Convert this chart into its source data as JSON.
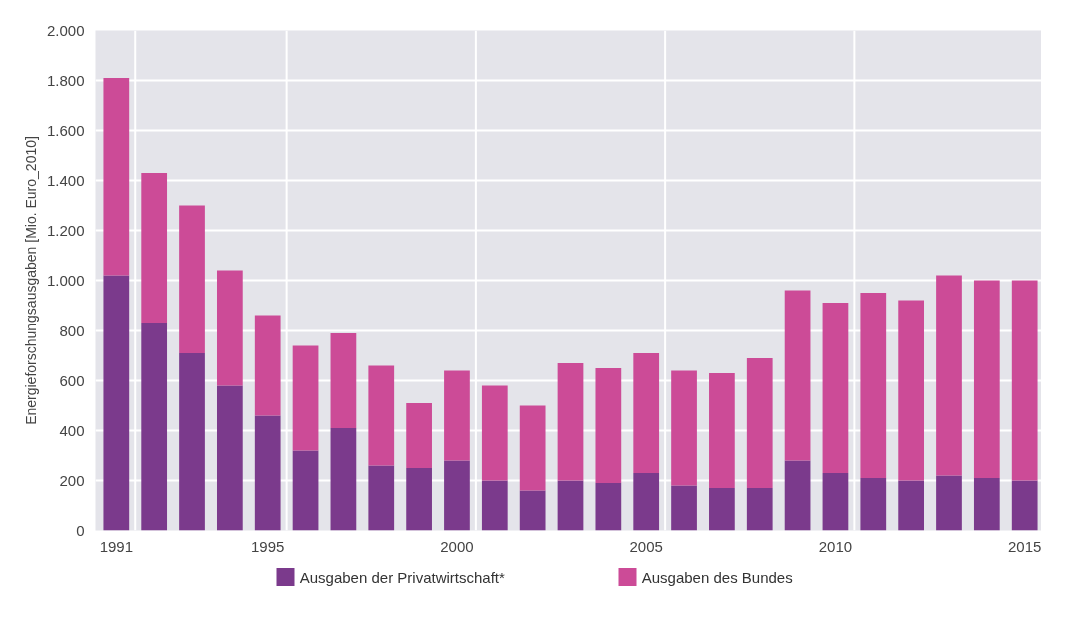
{
  "chart_data": {
    "type": "bar",
    "stacked": true,
    "ylabel": "Energieforschungsausgaben [Mio. Euro_2010]",
    "categories": [
      "1991",
      null,
      null,
      null,
      "1995",
      null,
      null,
      null,
      null,
      "2000",
      null,
      null,
      null,
      null,
      "2005",
      null,
      null,
      null,
      null,
      "2010",
      null,
      null,
      null,
      null,
      "2015"
    ],
    "series": [
      {
        "name": "Ausgaben der Privatwirtschaft*",
        "color": "#7b3a8c",
        "values": [
          1020,
          830,
          710,
          580,
          460,
          320,
          410,
          260,
          250,
          280,
          200,
          160,
          200,
          190,
          230,
          180,
          170,
          170,
          280,
          230,
          210,
          200,
          220,
          210,
          200
        ]
      },
      {
        "name": "Ausgaben des Bundes",
        "color": "#cc4b97",
        "values": [
          790,
          600,
          590,
          460,
          400,
          420,
          380,
          400,
          260,
          360,
          380,
          340,
          470,
          460,
          480,
          460,
          460,
          520,
          680,
          680,
          740,
          720,
          800,
          790,
          800
        ]
      }
    ],
    "ylim": [
      0,
      2000
    ],
    "yticks": [
      0,
      {
        "value": 200,
        "label": "200"
      },
      {
        "value": 400,
        "label": "400"
      },
      {
        "value": 600,
        "label": "600"
      },
      {
        "value": 800,
        "label": "800"
      },
      {
        "value": 1000,
        "label": "1.000"
      },
      {
        "value": 1200,
        "label": "1.200"
      },
      {
        "value": 1400,
        "label": "1.400"
      },
      {
        "value": 1600,
        "label": "1.600"
      },
      {
        "value": 1800,
        "label": "1.800"
      },
      {
        "value": 2000,
        "label": "2.000"
      }
    ],
    "grid": true,
    "legend": "bottom"
  }
}
